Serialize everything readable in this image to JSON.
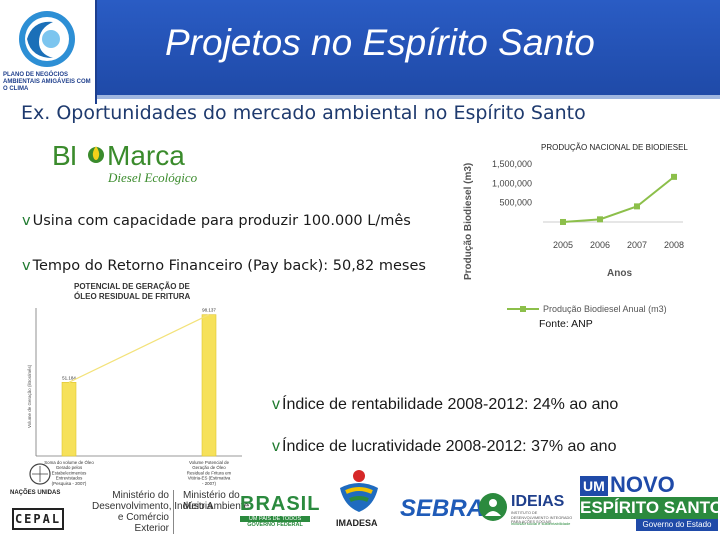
{
  "header": {
    "title": "Projetos no Espírito Santo",
    "logo_text": "PLANO DE NEGÓCIOS AMBIENTAIS AMIGÁVEIS COM O CLIMA"
  },
  "subtitle": "Ex. Oportunidades do mercado ambiental no Espírito Santo",
  "biomarca": {
    "name_part1": "BI",
    "name_part2": "Marca",
    "tagline": "Diesel Ecológico"
  },
  "bullets": [
    "Usina com capacidade para produzir 100.000 L/mês",
    "Tempo do Retorno Financeiro (Pay back): 50,82 meses",
    "Índice de rentabilidade 2008-2012: 24% ao ano",
    "Índice de lucratividade 2008-2012: 37% ao ano"
  ],
  "bullet_marker": "v",
  "colors": {
    "header_blue": "#2456bd",
    "title_text": "#ffffff",
    "subtitle_text": "#1e3a6e",
    "biomarca_green": "#3a8b2c",
    "line_green": "#8cbf4a",
    "bar_yellow": "#f6e15a"
  },
  "chart_data": [
    {
      "type": "line",
      "title": "PRODUÇÃO NACIONAL DE BIODIESEL",
      "ylabel": "Produção Biodiesel (m3)",
      "xlabel": "Anos",
      "x": [
        "2005",
        "2006",
        "2007",
        "2008"
      ],
      "series": [
        {
          "name": "Produção Biodiesel Anual (m3)",
          "values": [
            736,
            69002,
            404329,
            1167128
          ]
        }
      ],
      "y_ticks": [
        "500,000",
        "1,000,000",
        "1,500,000"
      ],
      "ylim": [
        0,
        1500000
      ],
      "legend": "bottom",
      "source": "Fonte: ANP"
    },
    {
      "type": "bar",
      "title": "POTENCIAL DE GERAÇÃO DE ÓLEO RESIDUAL DE FRITURA",
      "ylabel": "Volume de Geração (litros/mês)",
      "categories": [
        "Soma do volume de Óleo Gerado pelos Estabelecimentos Entrevistados (Pesquisa - 2007)",
        "Volume Potencial de Geração de Óleo Residual de Fritura em Vitória-ES (Estimativa - 2007)"
      ],
      "values": [
        51184,
        98137
      ],
      "value_labels": [
        "51.184",
        "98.137"
      ],
      "ylim": [
        0,
        100000
      ]
    }
  ],
  "footer": {
    "nacoes_unidas": "NAÇÕES UNIDAS",
    "cepal": "CEPAL",
    "ministerio1": [
      "Ministério do",
      "Desenvolvimento, Indústria",
      "e Comércio Exterior"
    ],
    "ministerio2": [
      "Ministério do",
      "Meio Ambiente"
    ],
    "brasil": "BRASIL",
    "brasil_sub1": "UM PAÍS DE TODOS",
    "brasil_sub2": "GOVERNO FEDERAL",
    "imadesa": "IMADESA",
    "sebrae": "SEBRAE",
    "ideias": "IDEIAS",
    "ideias_sub": "INSTITUTO DE DESENVOLVIMENTO INTEGRADO PARA AÇÕES SOCIAIS",
    "ideias_tag": "inclusão social e sustentabilidade",
    "es_um": "UM",
    "es_novo": "NOVO",
    "es_name": "ESPÍRITO SANTO",
    "es_gov": "Governo do Estado"
  }
}
